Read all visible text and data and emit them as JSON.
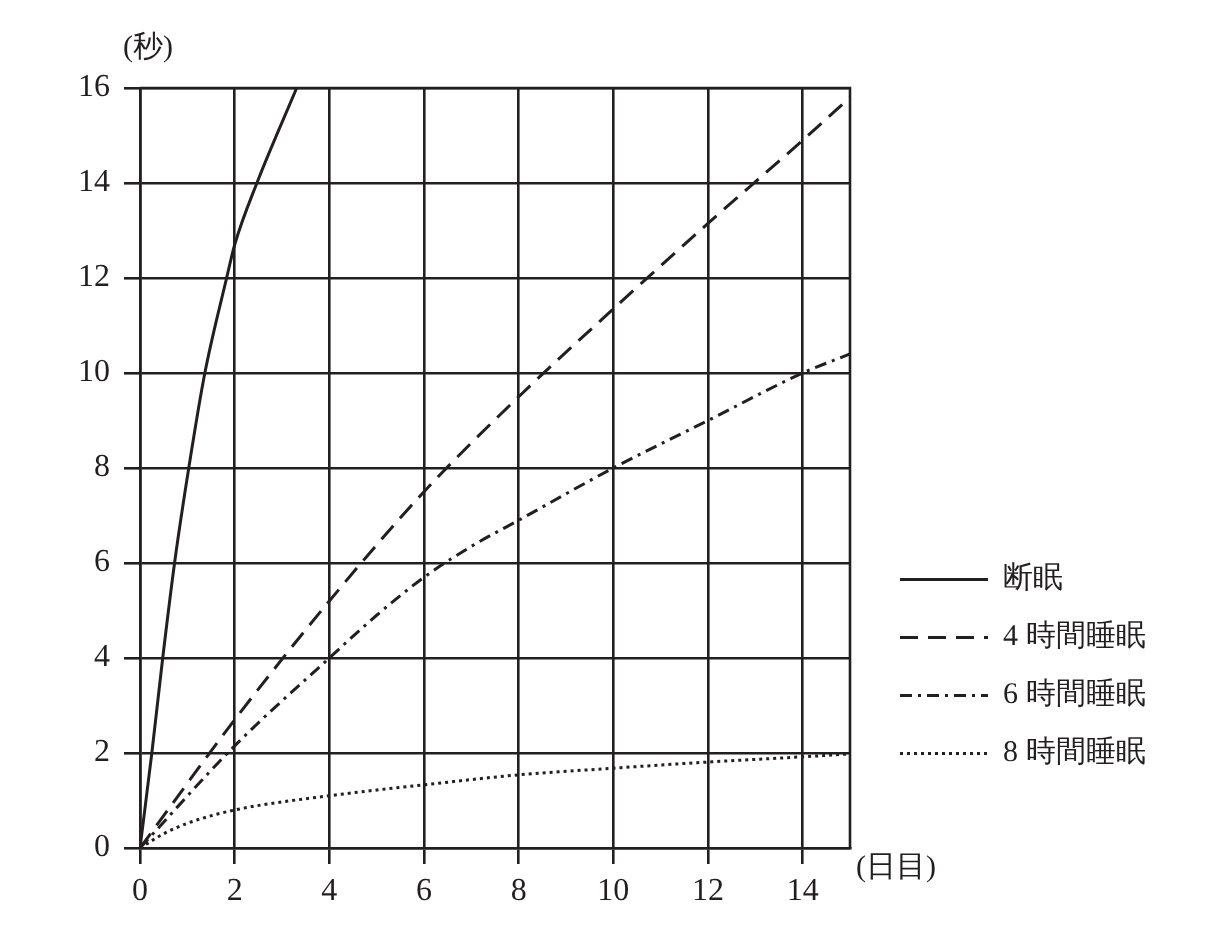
{
  "chart_data": {
    "type": "line",
    "xlabel": "(日目)",
    "ylabel": "(秒)",
    "xlim": [
      0,
      15
    ],
    "xticks": [
      0,
      2,
      4,
      6,
      8,
      10,
      12,
      14
    ],
    "ylim": [
      0,
      16
    ],
    "yticks": [
      0,
      2,
      4,
      6,
      8,
      10,
      12,
      14,
      16
    ],
    "grid": true,
    "legend": "right",
    "marker": "none",
    "series": [
      {
        "name": "断眠",
        "color": "#231f20",
        "line_style": "solid",
        "x": [
          0,
          0.25,
          0.48,
          0.73,
          1.03,
          1.37,
          1.83,
          2,
          2.47,
          3.31
        ],
        "values": [
          0,
          2,
          4,
          6,
          8,
          10,
          12,
          12.7,
          14,
          16
        ]
      },
      {
        "name": "4 時間睡眠",
        "color": "#231f20",
        "line_style": "dashed",
        "x": [
          0,
          2,
          4,
          6,
          8,
          10,
          12,
          14,
          15
        ],
        "values": [
          0,
          2.7,
          5.2,
          7.5,
          9.5,
          11.35,
          13.15,
          14.9,
          15.8
        ]
      },
      {
        "name": "6 時間睡眠",
        "color": "#231f20",
        "line_style": "dashdot",
        "x": [
          0,
          2,
          4,
          5,
          6,
          7,
          8,
          10,
          12,
          14,
          15
        ],
        "values": [
          0,
          2.15,
          4,
          4.9,
          5.7,
          6.35,
          6.9,
          8,
          9,
          10,
          10.4
        ]
      },
      {
        "name": "8 時間睡眠",
        "color": "#231f20",
        "line_style": "dotted",
        "x": [
          0,
          0.5,
          1,
          2,
          4,
          6,
          8,
          10,
          12,
          14,
          15
        ],
        "values": [
          0,
          0.3,
          0.52,
          0.8,
          1.1,
          1.33,
          1.54,
          1.68,
          1.81,
          1.92,
          1.98
        ]
      }
    ]
  }
}
